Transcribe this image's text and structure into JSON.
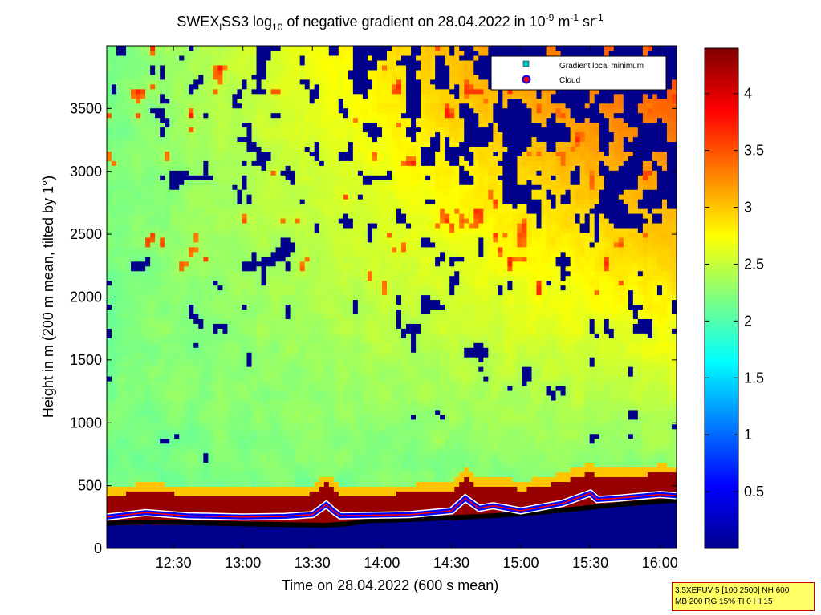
{
  "chart_data": {
    "type": "heatmap",
    "title": {
      "prefix": "SWEX",
      "sub": "l",
      "mid": "SS3 log",
      "sub2": "10",
      "rest": " of negative gradient on 28.04.2022 in 10",
      "sup1": "-9",
      "unit1": " m",
      "sup2": "-1",
      "unit2": " sr",
      "sup3": "-1"
    },
    "xlabel": "Time on 28.04.2022 (600 s mean)",
    "ylabel": "Height in m (200 m mean, tilted by 1°)",
    "x_ticks": [
      "12:30",
      "13:00",
      "13:30",
      "14:00",
      "14:30",
      "15:00",
      "15:30",
      "16:00"
    ],
    "x_tick_hours": [
      12.5,
      13.0,
      13.5,
      14.0,
      14.5,
      15.0,
      15.5,
      16.0
    ],
    "xlim_hours": [
      12.02,
      16.12
    ],
    "y_ticks": [
      0,
      500,
      1000,
      1500,
      2000,
      2500,
      3000,
      3500
    ],
    "ylim": [
      0,
      4000
    ],
    "colorbar": {
      "colormap": "jet",
      "range": [
        0,
        4.4
      ],
      "ticks": [
        "0.5",
        "1",
        "1.5",
        "2",
        "2.5",
        "3",
        "3.5",
        "4"
      ],
      "tick_values": [
        0.5,
        1,
        1.5,
        2,
        2.5,
        3,
        3.5,
        4
      ]
    },
    "legend": {
      "placement": "top-right",
      "entries": [
        {
          "label": "Gradient local minimum",
          "marker": "square",
          "color": "#00cccc"
        },
        {
          "label": "Cloud",
          "marker": "circle",
          "color": "#ff0000"
        }
      ]
    },
    "boundary_layer_height": {
      "x_hours": [
        12.02,
        12.3,
        12.6,
        13.0,
        13.3,
        13.6,
        13.75,
        13.9,
        14.2,
        14.5,
        14.8,
        15.1,
        15.4,
        15.7,
        16.0,
        16.12
      ],
      "y": [
        200,
        210,
        205,
        195,
        190,
        185,
        195,
        220,
        230,
        245,
        260,
        285,
        315,
        350,
        375,
        385
      ]
    },
    "cloud_line": {
      "x_hours": [
        12.02,
        12.3,
        12.6,
        13.0,
        13.3,
        13.5,
        13.6,
        13.65,
        13.7,
        14.2,
        14.5,
        14.6,
        14.7,
        14.8,
        15.0,
        15.3,
        15.5,
        15.55,
        15.7,
        16.0,
        16.12
      ],
      "y": [
        250,
        285,
        260,
        250,
        255,
        270,
        350,
        300,
        260,
        270,
        300,
        400,
        320,
        340,
        300,
        360,
        440,
        390,
        400,
        430,
        420
      ]
    }
  },
  "info_box": {
    "line1": "3.5XEFUV 5 [100 2500] NH 600",
    "line2": "MB 200 RG 15% TI 0 HI 15"
  }
}
